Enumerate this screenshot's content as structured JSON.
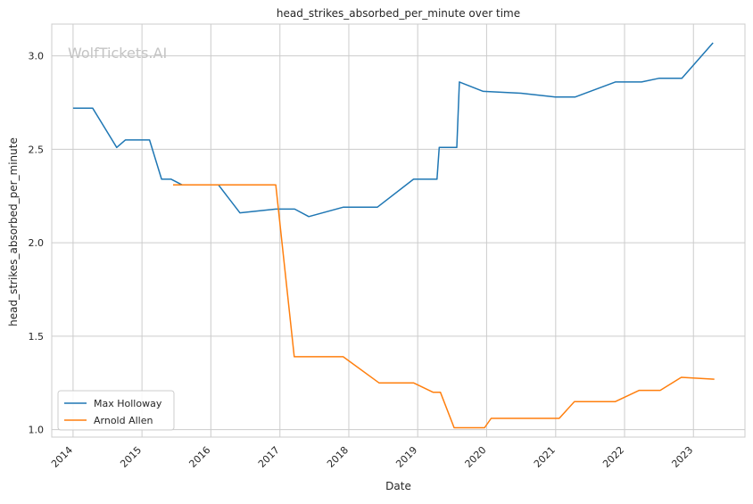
{
  "chart_data": {
    "type": "line",
    "title": "head_strikes_absorbed_per_minute over time",
    "xlabel": "Date",
    "ylabel": "head_strikes_absorbed_per_minute",
    "watermark": "WolfTickets.AI",
    "xlim": [
      "2013-09-10",
      "2023-10-01"
    ],
    "ylim": [
      0.96,
      3.17
    ],
    "x_ticks": [
      "2014",
      "2015",
      "2016",
      "2017",
      "2018",
      "2019",
      "2020",
      "2021",
      "2022",
      "2023"
    ],
    "y_ticks": [
      "1.0",
      "1.5",
      "2.0",
      "2.5",
      "3.0"
    ],
    "grid": true,
    "legend_position": "lower left",
    "series": [
      {
        "name": "Max Holloway",
        "color": "#1f77b4",
        "points": [
          [
            "2014-01-01",
            2.72
          ],
          [
            "2014-04-15",
            2.72
          ],
          [
            "2014-08-20",
            2.51
          ],
          [
            "2014-10-05",
            2.55
          ],
          [
            "2015-02-10",
            2.55
          ],
          [
            "2015-04-15",
            2.34
          ],
          [
            "2015-06-05",
            2.34
          ],
          [
            "2015-08-01",
            2.31
          ],
          [
            "2015-12-01",
            2.31
          ],
          [
            "2016-02-10",
            2.31
          ],
          [
            "2016-06-03",
            2.16
          ],
          [
            "2016-12-10",
            2.18
          ],
          [
            "2017-03-20",
            2.18
          ],
          [
            "2017-06-03",
            2.14
          ],
          [
            "2017-12-02",
            2.19
          ],
          [
            "2018-06-01",
            2.19
          ],
          [
            "2018-12-10",
            2.34
          ],
          [
            "2019-04-13",
            2.34
          ],
          [
            "2019-04-25",
            2.51
          ],
          [
            "2019-07-27",
            2.51
          ],
          [
            "2019-08-10",
            2.86
          ],
          [
            "2019-12-14",
            2.81
          ],
          [
            "2020-07-01",
            2.8
          ],
          [
            "2020-12-30",
            2.78
          ],
          [
            "2021-04-15",
            2.78
          ],
          [
            "2021-11-13",
            2.86
          ],
          [
            "2022-04-01",
            2.86
          ],
          [
            "2022-07-02",
            2.88
          ],
          [
            "2022-11-01",
            2.88
          ],
          [
            "2023-04-15",
            3.07
          ]
        ]
      },
      {
        "name": "Arnold Allen",
        "color": "#ff7f0e",
        "points": [
          [
            "2015-06-15",
            2.31
          ],
          [
            "2016-12-10",
            2.31
          ],
          [
            "2017-03-18",
            1.39
          ],
          [
            "2017-12-02",
            1.39
          ],
          [
            "2018-06-10",
            1.25
          ],
          [
            "2018-12-10",
            1.25
          ],
          [
            "2019-03-23",
            1.2
          ],
          [
            "2019-05-01",
            1.2
          ],
          [
            "2019-07-13",
            1.01
          ],
          [
            "2019-12-21",
            1.01
          ],
          [
            "2020-01-25",
            1.06
          ],
          [
            "2020-08-01",
            1.06
          ],
          [
            "2021-01-20",
            1.06
          ],
          [
            "2021-04-10",
            1.15
          ],
          [
            "2021-11-13",
            1.15
          ],
          [
            "2022-03-20",
            1.21
          ],
          [
            "2022-07-09",
            1.21
          ],
          [
            "2022-10-29",
            1.28
          ],
          [
            "2023-04-22",
            1.27
          ]
        ]
      }
    ]
  }
}
